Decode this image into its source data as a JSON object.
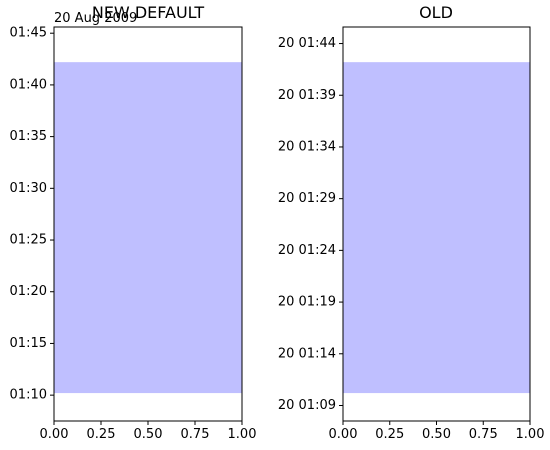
{
  "chart_data": [
    {
      "type": "area",
      "title": "NEW DEFAULT",
      "offset_label": "20 Aug 2009",
      "fill_color": "#bfbfff",
      "xlim": [
        0,
        1
      ],
      "ylim_minutes": [
        67.5,
        105.6
      ],
      "span": {
        "x": [
          0,
          1
        ],
        "y_start": "01:10:12",
        "y_end": "01:42:12"
      },
      "x_ticks": [
        {
          "value": 0,
          "label": "0.00"
        },
        {
          "value": 0.25,
          "label": "0.25"
        },
        {
          "value": 0.5,
          "label": "0.50"
        },
        {
          "value": 0.75,
          "label": "0.75"
        },
        {
          "value": 1,
          "label": "1.00"
        }
      ],
      "y_ticks": [
        {
          "value": 70,
          "label": "01:10"
        },
        {
          "value": 75,
          "label": "01:15"
        },
        {
          "value": 80,
          "label": "01:20"
        },
        {
          "value": 85,
          "label": "01:25"
        },
        {
          "value": 90,
          "label": "01:30"
        },
        {
          "value": 95,
          "label": "01:35"
        },
        {
          "value": 100,
          "label": "01:40"
        },
        {
          "value": 105,
          "label": "01:45"
        }
      ]
    },
    {
      "type": "area",
      "title": "OLD",
      "fill_color": "#bfbfff",
      "xlim": [
        0,
        1
      ],
      "ylim_minutes": [
        67.5,
        105.6
      ],
      "span": {
        "x": [
          0,
          1
        ],
        "y_start": "01:10:12",
        "y_end": "01:42:12"
      },
      "x_ticks": [
        {
          "value": 0,
          "label": "0.00"
        },
        {
          "value": 0.25,
          "label": "0.25"
        },
        {
          "value": 0.5,
          "label": "0.50"
        },
        {
          "value": 0.75,
          "label": "0.75"
        },
        {
          "value": 1,
          "label": "1.00"
        }
      ],
      "y_ticks": [
        {
          "value": 69,
          "label": "20 01:09"
        },
        {
          "value": 74,
          "label": "20 01:14"
        },
        {
          "value": 79,
          "label": "20 01:19"
        },
        {
          "value": 84,
          "label": "20 01:24"
        },
        {
          "value": 89,
          "label": "20 01:29"
        },
        {
          "value": 94,
          "label": "20 01:34"
        },
        {
          "value": 99,
          "label": "20 01:39"
        },
        {
          "value": 104,
          "label": "20 01:44"
        }
      ]
    }
  ]
}
